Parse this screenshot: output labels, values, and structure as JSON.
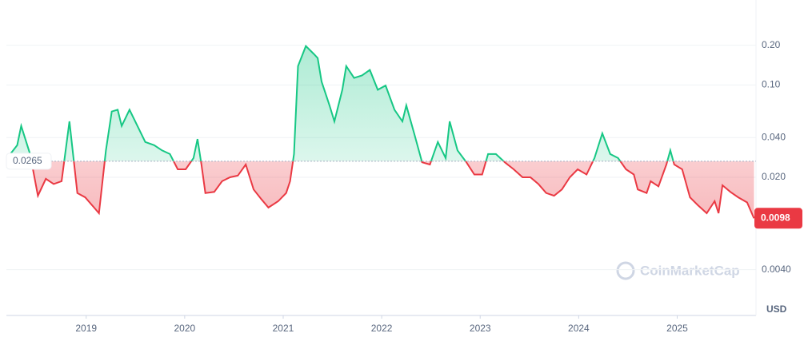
{
  "chart_data": {
    "type": "line",
    "log_scale": true,
    "grid": true,
    "x": [
      2018.23,
      2018.3,
      2018.34,
      2018.43,
      2018.51,
      2018.59,
      2018.67,
      2018.75,
      2018.83,
      2018.91,
      2018.99,
      2019.08,
      2019.13,
      2019.2,
      2019.26,
      2019.32,
      2019.36,
      2019.44,
      2019.52,
      2019.6,
      2019.69,
      2019.77,
      2019.85,
      2019.93,
      2020.01,
      2020.09,
      2020.13,
      2020.17,
      2020.21,
      2020.3,
      2020.38,
      2020.46,
      2020.54,
      2020.62,
      2020.7,
      2020.78,
      2020.85,
      2020.95,
      2021.03,
      2021.07,
      2021.11,
      2021.15,
      2021.23,
      2021.31,
      2021.35,
      2021.39,
      2021.47,
      2021.52,
      2021.6,
      2021.64,
      2021.72,
      2021.8,
      2021.88,
      2021.96,
      2022.04,
      2022.13,
      2022.21,
      2022.25,
      2022.33,
      2022.41,
      2022.49,
      2022.57,
      2022.65,
      2022.69,
      2022.77,
      2022.86,
      2022.94,
      2023.02,
      2023.08,
      2023.16,
      2023.25,
      2023.34,
      2023.43,
      2023.51,
      2023.59,
      2023.67,
      2023.75,
      2023.83,
      2023.91,
      2023.99,
      2024.08,
      2024.16,
      2024.24,
      2024.32,
      2024.4,
      2024.48,
      2024.56,
      2024.6,
      2024.69,
      2024.73,
      2024.81,
      2024.89,
      2024.93,
      2024.97,
      2025.05,
      2025.13,
      2025.21,
      2025.3,
      2025.38,
      2025.42,
      2025.46,
      2025.54,
      2025.62,
      2025.71,
      2025.78
    ],
    "series": [
      {
        "name": "Price",
        "color_up": "#16c784",
        "color_down": "#ea3943",
        "values": [
          0.03,
          0.035,
          0.049,
          0.03,
          0.0145,
          0.0195,
          0.0178,
          0.0187,
          0.053,
          0.0152,
          0.0141,
          0.0118,
          0.0107,
          0.032,
          0.063,
          0.065,
          0.049,
          0.065,
          0.049,
          0.037,
          0.035,
          0.032,
          0.03,
          0.023,
          0.023,
          0.028,
          0.039,
          0.025,
          0.0152,
          0.0155,
          0.0187,
          0.02,
          0.0206,
          0.025,
          0.0162,
          0.0136,
          0.0118,
          0.0132,
          0.0152,
          0.0187,
          0.03,
          0.139,
          0.197,
          0.172,
          0.16,
          0.106,
          0.07,
          0.053,
          0.092,
          0.139,
          0.113,
          0.118,
          0.13,
          0.092,
          0.099,
          0.065,
          0.053,
          0.07,
          0.043,
          0.026,
          0.025,
          0.037,
          0.028,
          0.053,
          0.032,
          0.026,
          0.021,
          0.021,
          0.03,
          0.03,
          0.026,
          0.023,
          0.02,
          0.02,
          0.0178,
          0.0152,
          0.0145,
          0.0162,
          0.02,
          0.023,
          0.021,
          0.028,
          0.043,
          0.03,
          0.028,
          0.023,
          0.021,
          0.0162,
          0.0152,
          0.0187,
          0.0171,
          0.025,
          0.032,
          0.025,
          0.023,
          0.0141,
          0.0123,
          0.0107,
          0.0132,
          0.0107,
          0.0174,
          0.0155,
          0.0141,
          0.0129,
          0.0098
        ]
      }
    ],
    "baseline": 0.0265,
    "last_price": {
      "value": 0.0098,
      "label": "0.0098"
    },
    "xlim": [
      2018.19,
      2025.8
    ],
    "xticks": [
      2019,
      2020,
      2021,
      2022,
      2023,
      2024,
      2025
    ],
    "ylim": [
      0.0018,
      0.44
    ],
    "yticks": [
      {
        "value": 0.004,
        "label": "0.0040"
      },
      {
        "value": 0.02,
        "label": "0.020"
      },
      {
        "value": 0.04,
        "label": "0.040"
      },
      {
        "value": 0.1,
        "label": "0.10"
      },
      {
        "value": 0.2,
        "label": "0.20"
      }
    ],
    "currency": "USD",
    "watermark": "CoinMarketCap"
  }
}
